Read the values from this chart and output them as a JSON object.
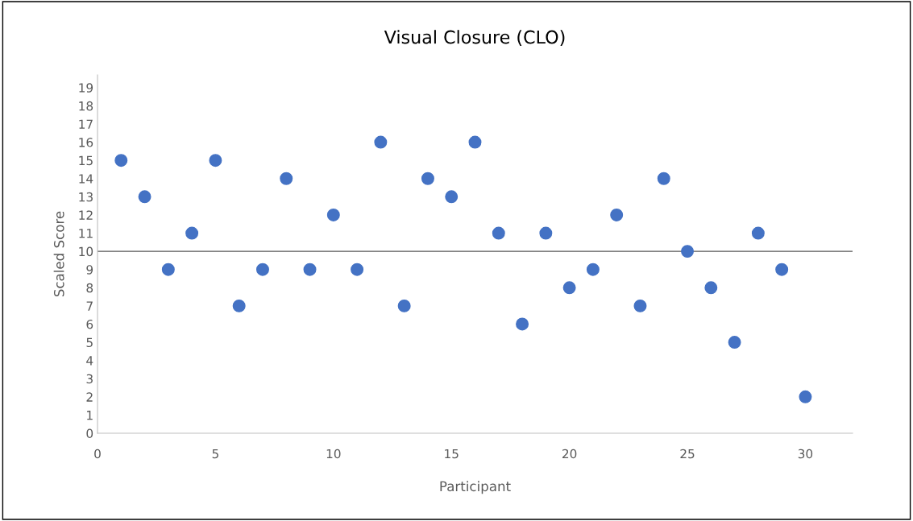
{
  "chart_data": {
    "type": "scatter",
    "title": "Visual Closure (CLO)",
    "xlabel": "Participant",
    "ylabel": "Scaled Score",
    "x": [
      1,
      2,
      3,
      4,
      5,
      6,
      7,
      8,
      9,
      10,
      11,
      12,
      13,
      14,
      15,
      16,
      17,
      18,
      19,
      20,
      21,
      22,
      23,
      24,
      25,
      26,
      27,
      28,
      29,
      30
    ],
    "series": [
      {
        "color": "#4472c4",
        "values": [
          15,
          13,
          9,
          11,
          15,
          7,
          9,
          14,
          9,
          12,
          9,
          16,
          7,
          14,
          13,
          16,
          11,
          6,
          11,
          8,
          9,
          12,
          7,
          14,
          10,
          8,
          5,
          11,
          9,
          2
        ]
      }
    ],
    "xlim": [
      0,
      32
    ],
    "xticks": [
      0,
      5,
      10,
      15,
      20,
      25,
      30
    ],
    "ylim": [
      0,
      19.7
    ],
    "yticks": [
      0,
      1,
      2,
      3,
      4,
      5,
      6,
      7,
      8,
      9,
      10,
      11,
      12,
      13,
      14,
      15,
      16,
      17,
      18,
      19
    ],
    "ref_lines": [
      {
        "axis": "y",
        "value": 10,
        "label": null,
        "color": "#595959"
      }
    ],
    "marker": "circle",
    "grid": false,
    "legend": false
  }
}
